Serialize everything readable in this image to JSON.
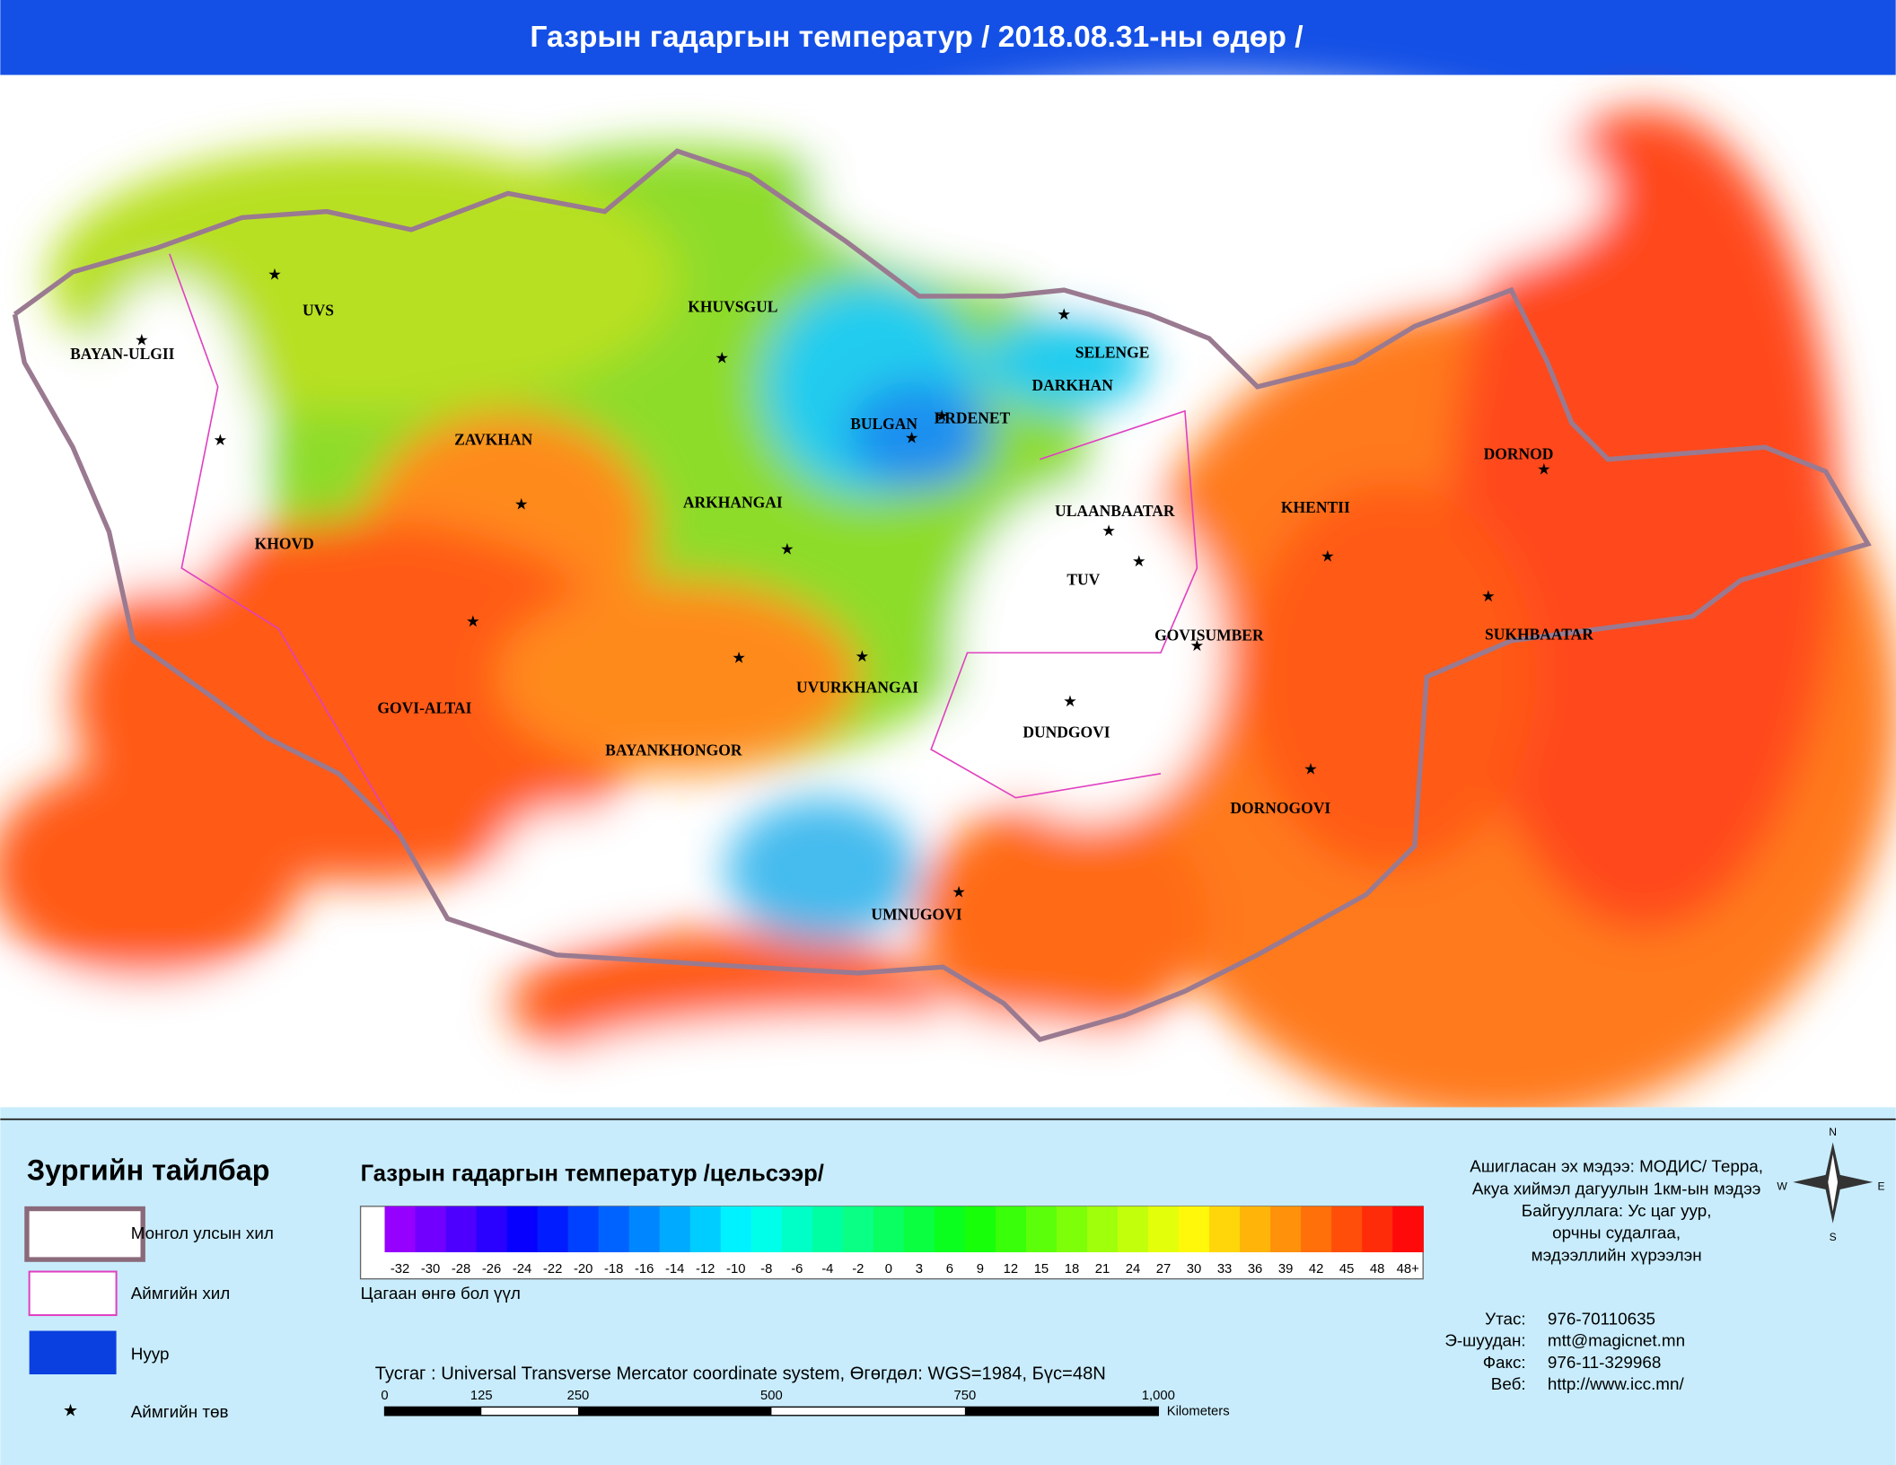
{
  "header": {
    "title": "Газрын гадаргын температур / 2018.08.31-ны өдөр /"
  },
  "map": {
    "labels": [
      "UVS",
      "BAYAN-ULGII",
      "KHUVSGUL",
      "SELENGE",
      "DARKHAN",
      "BULGAN",
      "ERDENET",
      "ZAVKHAN",
      "DORNOD",
      "ARKHANGAI",
      "ULAANBAATAR",
      "KHENTII",
      "KHOVD",
      "TUV",
      "GOVISUMBER",
      "SUKHBAATAR",
      "UVURKHANGAI",
      "GOVI-ALTAI",
      "DUNDGOVI",
      "BAYANKHONGOR",
      "DORNOGOVI",
      "UMNUGOVI"
    ]
  },
  "legend": {
    "title": "Зургийн тайлбар",
    "items": [
      "Монгол улсын хил",
      "Аймгийн хил",
      "Нуур",
      "Аймгийн төв"
    ]
  },
  "colorbar": {
    "title": "Газрын гадаргын температур /цельсээр/",
    "ticks": [
      "-32",
      "-30",
      "-28",
      "-26",
      "-24",
      "-22",
      "-20",
      "-18",
      "-16",
      "-14",
      "-12",
      "-10",
      "-8",
      "-6",
      "-4",
      "-2",
      "0",
      "3",
      "6",
      "9",
      "12",
      "15",
      "18",
      "21",
      "24",
      "27",
      "30",
      "33",
      "36",
      "39",
      "42",
      "45",
      "48",
      "48+"
    ],
    "note": "Цагаан өнгө бол үүл"
  },
  "projection": "Тусгаг : Universal Transverse Mercator coordinate system, Өгөгдөл: WGS=1984, Бүс=48N",
  "scalebar": {
    "ticks": [
      "0",
      "125",
      "250",
      "500",
      "750",
      "1,000"
    ],
    "unit": "Kilometers"
  },
  "info": [
    "Ашигласан эх мэдээ: МОДИС/ Терра,",
    "Акуа хиймэл дагуулын 1км-ын мэдээ",
    "Байгууллага: Ус цаг уур,",
    "орчны судалгаа,",
    "мэдээллийн хүрээлэн"
  ],
  "contacts": [
    [
      "Утас:",
      "976-70110635"
    ],
    [
      "Э-шуудан:",
      "mtt@magicnet.mn"
    ],
    [
      "Факс:",
      "976-11-329968"
    ],
    [
      "Веб:",
      "http://www.icc.mn/"
    ]
  ],
  "compass": [
    "N",
    "E",
    "W",
    "S"
  ]
}
